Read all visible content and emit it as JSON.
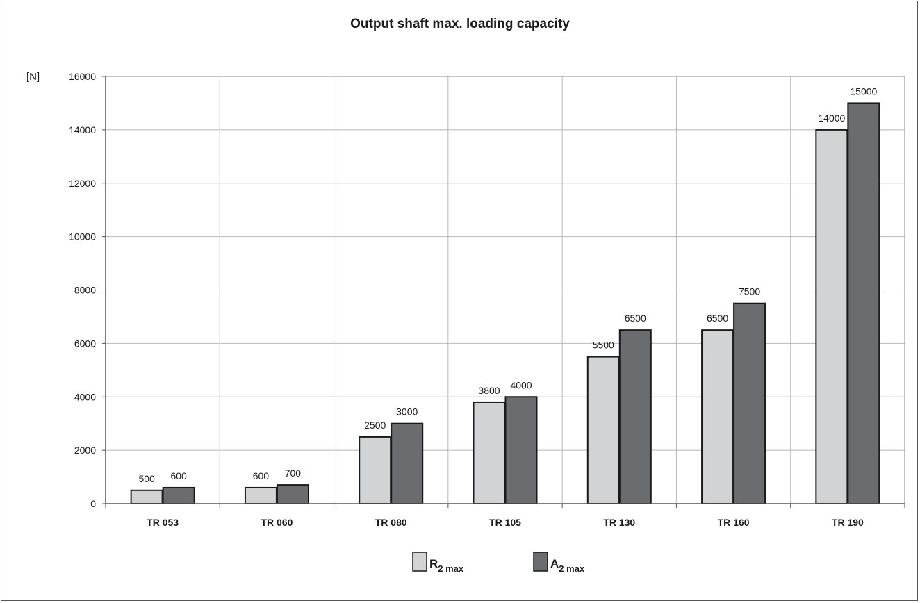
{
  "chart_data": {
    "type": "bar",
    "title": "Output shaft max. loading capacity",
    "ylabel": "[N]",
    "xlabel": "",
    "ylim": [
      0,
      16000
    ],
    "yticks": [
      0,
      2000,
      4000,
      6000,
      8000,
      10000,
      12000,
      14000,
      16000
    ],
    "grid": true,
    "legend_position": "bottom-center",
    "categories": [
      "TR 053",
      "TR 060",
      "TR 080",
      "TR 105",
      "TR 130",
      "TR 160",
      "TR 190"
    ],
    "series": [
      {
        "name": "R2 max",
        "legend_main": "R",
        "legend_sub": "2 max",
        "color": "#d2d3d5",
        "values": [
          500,
          600,
          2500,
          3800,
          5500,
          6500,
          14000
        ],
        "labels": [
          "500",
          "600",
          "2500",
          "3800",
          "5500",
          "6500",
          "14000"
        ]
      },
      {
        "name": "A2 max",
        "legend_main": "A",
        "legend_sub": "2 max",
        "color": "#6b6c70",
        "values": [
          600,
          700,
          3000,
          4000,
          6500,
          7500,
          15000
        ],
        "labels": [
          "600",
          "700",
          "3000",
          "4000",
          "6500",
          "7500",
          "15000"
        ]
      }
    ]
  }
}
